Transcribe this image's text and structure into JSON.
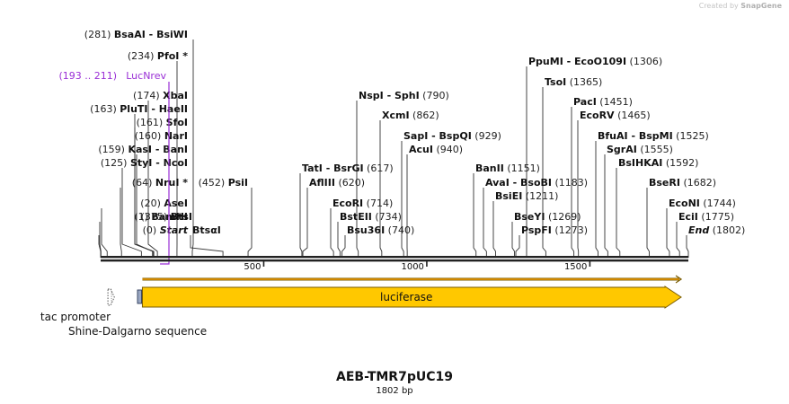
{
  "credit": {
    "prefix": "Created by",
    "brand": "SnapGene"
  },
  "plasmid": {
    "name": "AEB-TMR7pUC19",
    "length_label": "1802 bp",
    "length_bp": 1802
  },
  "axis": {
    "ticks": [
      {
        "label": "500",
        "bp": 500
      },
      {
        "label": "1000",
        "bp": 1000
      },
      {
        "label": "1500",
        "bp": 1500
      }
    ]
  },
  "sites_left": [
    {
      "pos": "(281)",
      "names": [
        "BsaAI",
        "BsiWI"
      ],
      "bp": 281
    },
    {
      "pos": "(234)",
      "names": [
        "PfoI *"
      ],
      "bp": 234
    },
    {
      "pos": "(174)",
      "names": [
        "XbaI"
      ],
      "bp": 174
    },
    {
      "pos": "(163)",
      "names": [
        "PluTI",
        "HaeII"
      ],
      "bp": 163
    },
    {
      "pos": "(161)",
      "names": [
        "SfoI"
      ],
      "bp": 161
    },
    {
      "pos": "(160)",
      "names": [
        "NarI"
      ],
      "bp": 160
    },
    {
      "pos": "(159)",
      "names": [
        "KasI",
        "BanI"
      ],
      "bp": 159
    },
    {
      "pos": "(125)",
      "names": [
        "StyI",
        "NcoI"
      ],
      "bp": 125
    },
    {
      "pos": "(64)",
      "names": [
        "NruI *"
      ],
      "bp": 64
    },
    {
      "pos": "(20)",
      "names": [
        "AseI"
      ],
      "bp": 20
    },
    {
      "pos": "(1)",
      "names": [
        "BamHI"
      ],
      "bp": 1
    },
    {
      "pos": "(0)",
      "names": [
        "Start"
      ],
      "bp": 0,
      "italic": true
    }
  ],
  "primer": {
    "pos": "(193 .. 211)",
    "name": "LucNrev",
    "start": 193,
    "end": 211,
    "color": "#9a2fd6"
  },
  "sites_right": [
    {
      "names": [
        "PsiI"
      ],
      "pos": "(452)",
      "bp": 452,
      "posFirst": true
    },
    {
      "names": [
        "BtsI"
      ],
      "pos": "(375)",
      "bp": 375,
      "posFirst": true
    },
    {
      "names": [
        "BtsαI"
      ],
      "pos": "",
      "bp": 375
    },
    {
      "names": [
        "NspI",
        "SphI"
      ],
      "pos": "(790)",
      "bp": 790
    },
    {
      "names": [
        "XcmI"
      ],
      "pos": "(862)",
      "bp": 862
    },
    {
      "names": [
        "SapI",
        "BspQI"
      ],
      "pos": "(929)",
      "bp": 929
    },
    {
      "names": [
        "AcuI"
      ],
      "pos": "(940)",
      "bp": 940
    },
    {
      "names": [
        "TatI",
        "BsrGI"
      ],
      "pos": "(617)",
      "bp": 617
    },
    {
      "names": [
        "AflIII"
      ],
      "pos": "(620)",
      "bp": 620
    },
    {
      "names": [
        "EcoRI"
      ],
      "pos": "(714)",
      "bp": 714
    },
    {
      "names": [
        "BstEII"
      ],
      "pos": "(734)",
      "bp": 734
    },
    {
      "names": [
        "Bsu36I"
      ],
      "pos": "(740)",
      "bp": 740
    },
    {
      "names": [
        "PpuMI",
        "EcoO109I"
      ],
      "pos": "(1306)",
      "bp": 1306
    },
    {
      "names": [
        "TsoI"
      ],
      "pos": "(1365)",
      "bp": 1365
    },
    {
      "names": [
        "BanII"
      ],
      "pos": "(1151)",
      "bp": 1151
    },
    {
      "names": [
        "AvaI",
        "BsoBI"
      ],
      "pos": "(1183)",
      "bp": 1183
    },
    {
      "names": [
        "BsiEI"
      ],
      "pos": "(1211)",
      "bp": 1211
    },
    {
      "names": [
        "BseYI"
      ],
      "pos": "(1269)",
      "bp": 1269
    },
    {
      "names": [
        "PspFI"
      ],
      "pos": "(1273)",
      "bp": 1273
    },
    {
      "names": [
        "PacI"
      ],
      "pos": "(1451)",
      "bp": 1451
    },
    {
      "names": [
        "EcoRV"
      ],
      "pos": "(1465)",
      "bp": 1465
    },
    {
      "names": [
        "BfuAI",
        "BspMI"
      ],
      "pos": "(1525)",
      "bp": 1525
    },
    {
      "names": [
        "SgrAI"
      ],
      "pos": "(1555)",
      "bp": 1555
    },
    {
      "names": [
        "BsIHKAI"
      ],
      "pos": "(1592)",
      "bp": 1592
    },
    {
      "names": [
        "BseRI"
      ],
      "pos": "(1682)",
      "bp": 1682
    },
    {
      "names": [
        "EcoNI"
      ],
      "pos": "(1744)",
      "bp": 1744
    },
    {
      "names": [
        "EciI"
      ],
      "pos": "(1775)",
      "bp": 1775
    },
    {
      "names": [
        "End"
      ],
      "pos": "(1802)",
      "bp": 1802,
      "italic": true
    }
  ],
  "features": [
    {
      "name": "luciferase",
      "type": "cds",
      "start": 128,
      "end": 1780,
      "color": "#ffc800",
      "stroke": "#7a5c00"
    },
    {
      "name": "tac promoter",
      "type": "promoter",
      "start": 14,
      "end": 42
    },
    {
      "name": "Shine-Dalgarno sequence",
      "type": "rbs",
      "start": 112,
      "end": 124
    }
  ],
  "colors": {
    "backbone": "#222222",
    "site_line": "#333333",
    "label": "#111111",
    "position": "#222222"
  }
}
